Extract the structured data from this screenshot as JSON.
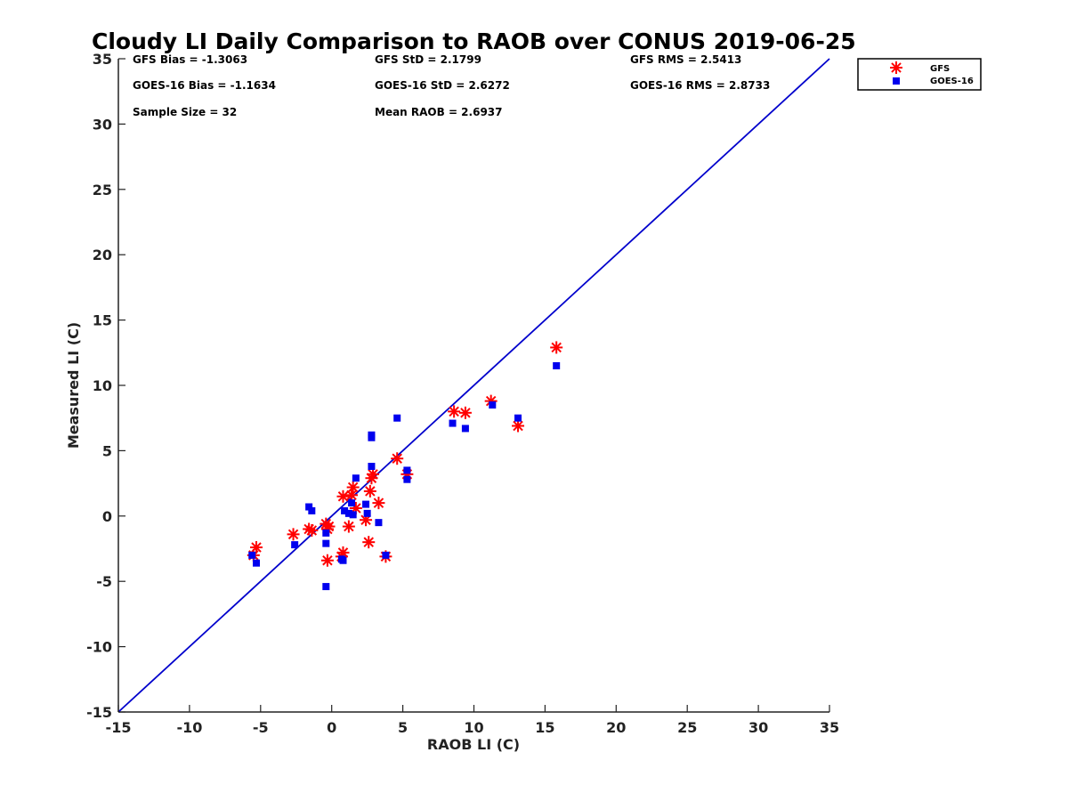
{
  "chart_data": {
    "type": "scatter",
    "title": "Cloudy LI Daily Comparison to RAOB over CONUS 2019-06-25",
    "xlabel": "RAOB LI (C)",
    "ylabel": "Measured LI (C)",
    "xlim": [
      -15,
      35
    ],
    "ylim": [
      -15,
      35
    ],
    "xticks": [
      -15,
      -10,
      -5,
      0,
      5,
      10,
      15,
      20,
      25,
      30,
      35
    ],
    "yticks": [
      -15,
      -10,
      -5,
      0,
      5,
      10,
      15,
      20,
      25,
      30,
      35
    ],
    "reference_line": {
      "name": "1:1 line",
      "points": [
        [
          -15,
          -15
        ],
        [
          35,
          35
        ]
      ],
      "color": "#0000cc"
    },
    "legend_position": "top-right, outside plot",
    "stats": {
      "gfs_bias": "GFS Bias = -1.3063",
      "gfs_std": "GFS StD = 2.1799",
      "gfs_rms": "GFS RMS = 2.5413",
      "goes_bias": "GOES-16 Bias = -1.1634",
      "goes_std": "GOES-16 StD = 2.6272",
      "goes_rms": "GOES-16 RMS = 2.8733",
      "sample_size": "Sample Size = 32",
      "mean_raob": "Mean RAOB = 2.6937"
    },
    "series": [
      {
        "name": "GFS",
        "marker": "asterisk",
        "color": "#ff0000",
        "points": [
          [
            -5.5,
            -3.0
          ],
          [
            -5.3,
            -2.4
          ],
          [
            -2.7,
            -1.4
          ],
          [
            -1.6,
            -1.0
          ],
          [
            -1.4,
            -1.1
          ],
          [
            -0.4,
            -0.6
          ],
          [
            -0.3,
            -1.0
          ],
          [
            -0.2,
            -0.8
          ],
          [
            -0.3,
            -3.4
          ],
          [
            0.8,
            -2.8
          ],
          [
            0.7,
            -3.1
          ],
          [
            0.8,
            1.5
          ],
          [
            1.2,
            -0.8
          ],
          [
            1.4,
            1.6
          ],
          [
            1.5,
            2.2
          ],
          [
            1.7,
            0.6
          ],
          [
            2.4,
            -0.3
          ],
          [
            2.6,
            -2.0
          ],
          [
            2.7,
            1.9
          ],
          [
            2.8,
            2.9
          ],
          [
            2.9,
            3.2
          ],
          [
            3.3,
            1.0
          ],
          [
            3.8,
            -3.1
          ],
          [
            4.6,
            4.4
          ],
          [
            5.3,
            3.2
          ],
          [
            8.6,
            8.0
          ],
          [
            9.4,
            7.9
          ],
          [
            11.2,
            8.8
          ],
          [
            13.1,
            6.9
          ],
          [
            15.8,
            12.9
          ]
        ]
      },
      {
        "name": "GOES-16",
        "marker": "square",
        "color": "#0000ee",
        "points": [
          [
            -5.6,
            -3.0
          ],
          [
            -5.3,
            -3.6
          ],
          [
            -2.6,
            -2.2
          ],
          [
            -1.6,
            0.7
          ],
          [
            -1.4,
            0.4
          ],
          [
            -0.4,
            -1.3
          ],
          [
            -0.4,
            -2.1
          ],
          [
            -0.4,
            -5.4
          ],
          [
            0.7,
            -3.3
          ],
          [
            0.8,
            -3.4
          ],
          [
            0.9,
            0.4
          ],
          [
            1.2,
            0.2
          ],
          [
            1.4,
            1.0
          ],
          [
            1.5,
            0.1
          ],
          [
            1.7,
            2.9
          ],
          [
            2.4,
            0.9
          ],
          [
            2.5,
            0.2
          ],
          [
            2.8,
            3.8
          ],
          [
            2.8,
            6.0
          ],
          [
            2.8,
            6.2
          ],
          [
            3.3,
            -0.5
          ],
          [
            3.8,
            -3.0
          ],
          [
            4.6,
            7.5
          ],
          [
            5.3,
            3.5
          ],
          [
            5.3,
            2.8
          ],
          [
            8.5,
            7.1
          ],
          [
            9.4,
            6.7
          ],
          [
            11.3,
            8.5
          ],
          [
            13.1,
            7.5
          ],
          [
            15.8,
            11.5
          ]
        ]
      }
    ]
  }
}
